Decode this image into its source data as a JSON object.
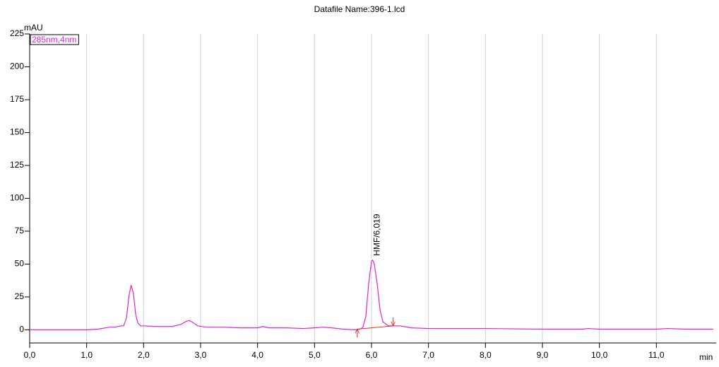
{
  "chart_data": {
    "type": "line",
    "title": "Datafile Name:396-1.lcd",
    "y_axis_label": "mAU",
    "x_axis_label": "min",
    "legend": "top-left",
    "grid": "x",
    "xlim": [
      0,
      12.05
    ],
    "ylim": [
      -10,
      225
    ],
    "xticks": [
      {
        "value": 0,
        "label": "0,0"
      },
      {
        "value": 1,
        "label": "1,0"
      },
      {
        "value": 2,
        "label": "2,0"
      },
      {
        "value": 3,
        "label": "3,0"
      },
      {
        "value": 4,
        "label": "4,0"
      },
      {
        "value": 5,
        "label": "5,0"
      },
      {
        "value": 6,
        "label": "6,0"
      },
      {
        "value": 7,
        "label": "7,0"
      },
      {
        "value": 8,
        "label": "8,0"
      },
      {
        "value": 9,
        "label": "9,0"
      },
      {
        "value": 10,
        "label": "10,0"
      },
      {
        "value": 11,
        "label": "11,0"
      }
    ],
    "yticks": [
      0,
      25,
      50,
      75,
      100,
      125,
      150,
      175,
      200,
      225
    ],
    "x": [
      0,
      0.5,
      1.0,
      1.2,
      1.4,
      1.5,
      1.6,
      1.65,
      1.7,
      1.74,
      1.78,
      1.82,
      1.86,
      1.9,
      1.95,
      2.0,
      2.2,
      2.5,
      2.65,
      2.75,
      2.8,
      2.85,
      2.95,
      3.1,
      3.4,
      3.7,
      4.0,
      4.1,
      4.2,
      4.5,
      4.8,
      5.0,
      5.15,
      5.3,
      5.5,
      5.7,
      5.8,
      5.85,
      5.9,
      5.95,
      6.0,
      6.02,
      6.05,
      6.1,
      6.15,
      6.2,
      6.3,
      6.4,
      6.5,
      6.7,
      7.0,
      8.0,
      9.0,
      9.7,
      9.8,
      10.0,
      11.0,
      11.2,
      11.5,
      12.0
    ],
    "series": [
      {
        "name": "285nm,4nm",
        "color": "#e020e0",
        "values": [
          0,
          0,
          0,
          0.5,
          2,
          2,
          3,
          3,
          9,
          25,
          34,
          28,
          12,
          5,
          3,
          3,
          2.5,
          2.5,
          4,
          6.5,
          7,
          6,
          3,
          2,
          2,
          1.5,
          1.5,
          2.5,
          1.5,
          1.5,
          1,
          1.5,
          2,
          1.5,
          0.5,
          0,
          0.5,
          2,
          10,
          35,
          52,
          53,
          50,
          35,
          15,
          6,
          3,
          3,
          3,
          1.5,
          1,
          1,
          0.5,
          0.5,
          1,
          0.5,
          0.5,
          1,
          0.5,
          0.5
        ]
      }
    ],
    "integration_baseline": {
      "color": "#e03020",
      "x": [
        5.75,
        6.38
      ],
      "values": [
        0.5,
        3
      ]
    },
    "annotations": [
      {
        "text": "HMF/6,019",
        "x": 6.019
      }
    ]
  }
}
